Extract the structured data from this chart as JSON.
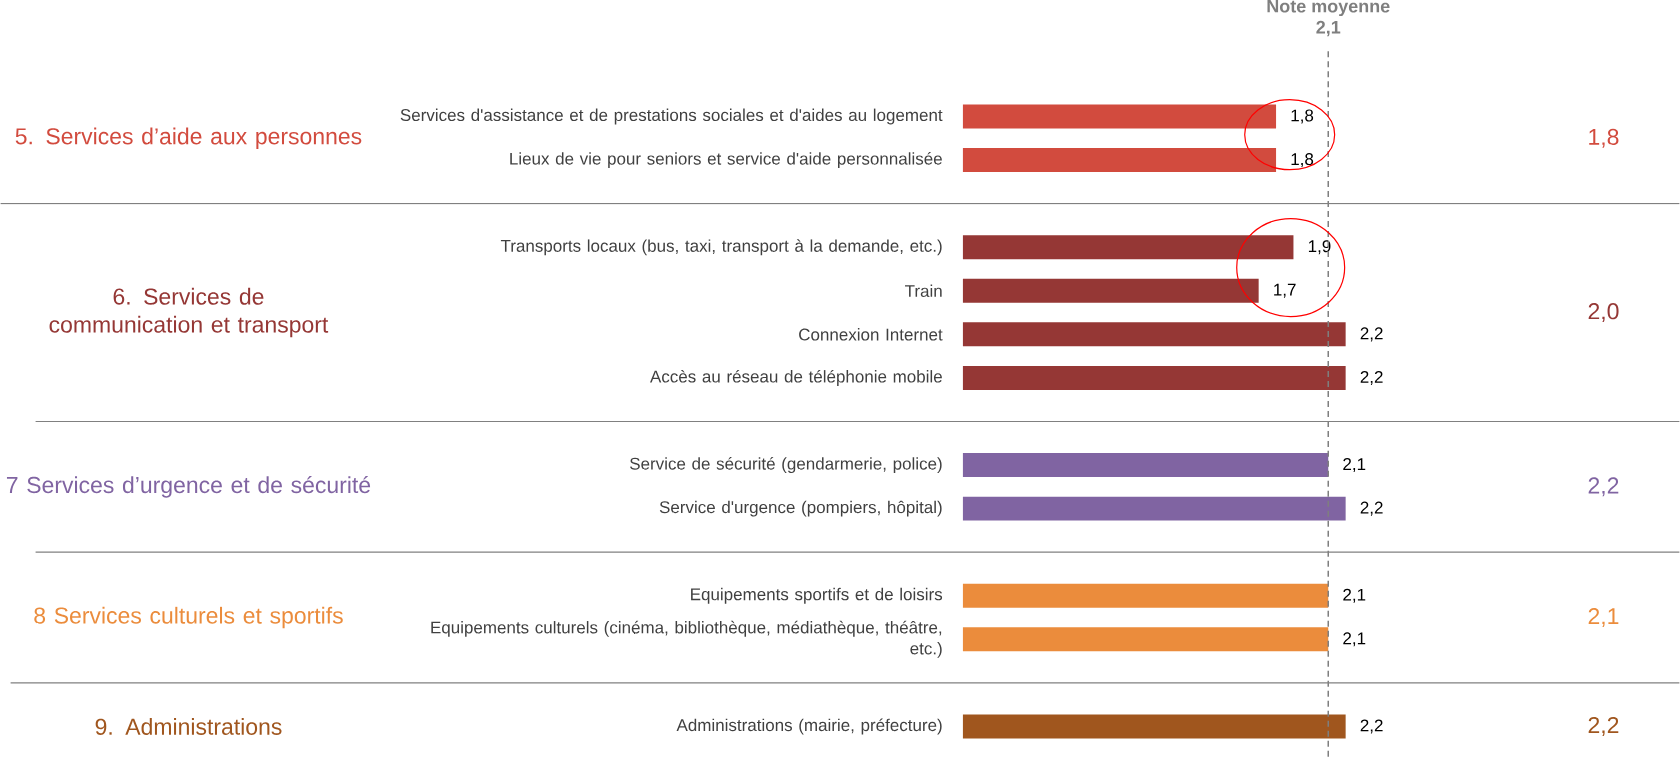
{
  "chart_data": {
    "type": "bar",
    "orientation": "horizontal",
    "categories": [
      "Services d'assistance et de prestations sociales et d'aides au logement",
      "Lieux de vie pour seniors et service d'aide personnalisée",
      "Transports locaux (bus, taxi, transport à la demande, etc.)",
      "Train",
      "Connexion Internet",
      "Accès au réseau de téléphonie mobile",
      "Service de sécurité (gendarmerie, police)",
      "Service d'urgence (pompiers, hôpital)",
      "Equipements sportifs et de loisirs",
      "Equipements culturels (cinéma, bibliothèque, médiathèque, théâtre, etc.)",
      "Administrations (mairie, préfecture)"
    ],
    "values": [
      1.8,
      1.8,
      1.9,
      1.7,
      2.2,
      2.2,
      2.1,
      2.2,
      2.1,
      2.1,
      2.2
    ],
    "value_labels": [
      "1,8",
      "1,8",
      "1,9",
      "1,7",
      "2,2",
      "2,2",
      "2,1",
      "2,2",
      "2,1",
      "2,1",
      "2,2"
    ],
    "colors": [
      "#d24b3e",
      "#d24b3e",
      "#953735",
      "#953735",
      "#953735",
      "#953735",
      "#8064a2",
      "#8064a2",
      "#eb8c3c",
      "#eb8c3c",
      "#a0561e"
    ],
    "ref_lines": [
      {
        "axis": "x",
        "value": 2.1,
        "label": "Note moyenne",
        "color": "#7f7f7f",
        "line_style": "dashed"
      }
    ],
    "annotations": [
      "5. Services d’aide aux personnes",
      "6. Services de communication et transport",
      "7 Services d’urgence et de sécurité",
      "8 Services culturels et sportifs",
      "9. Administrations",
      "1,8",
      "2,0",
      "2,2",
      "2,1",
      "2,2",
      "2,1"
    ]
  }
}
